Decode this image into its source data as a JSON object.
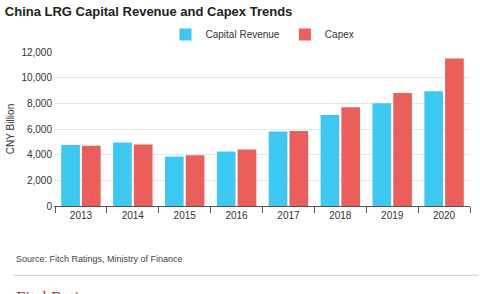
{
  "chart_data": {
    "type": "bar",
    "title": "China LRG Capital Revenue and Capex Trends",
    "y_label": "CNY Billion",
    "categories": [
      "2013",
      "2014",
      "2015",
      "2016",
      "2017",
      "2018",
      "2019",
      "2020"
    ],
    "series": [
      {
        "name": "Capital Revenue",
        "color": "#3dc8f2",
        "values": [
          4750,
          4950,
          3850,
          4250,
          5800,
          7100,
          8000,
          8950
        ]
      },
      {
        "name": "Capex",
        "color": "#eb5e5a",
        "values": [
          4700,
          4800,
          3950,
          4400,
          5850,
          7700,
          8800,
          11500
        ]
      }
    ],
    "ylim": [
      0,
      12000
    ],
    "yticks": [
      0,
      {
        "value": 2000,
        "label": "2,000"
      },
      {
        "value": 4000,
        "label": "4,000"
      },
      {
        "value": 6000,
        "label": "6,000"
      },
      {
        "value": 8000,
        "label": "8,000"
      },
      {
        "value": 10000,
        "label": "10,000"
      },
      {
        "value": 12000,
        "label": "12,000"
      }
    ],
    "grid": true,
    "legend": "top",
    "annotations": [
      "Source: Fitch Ratings, Ministry of Finance",
      "FitchRatings"
    ]
  }
}
